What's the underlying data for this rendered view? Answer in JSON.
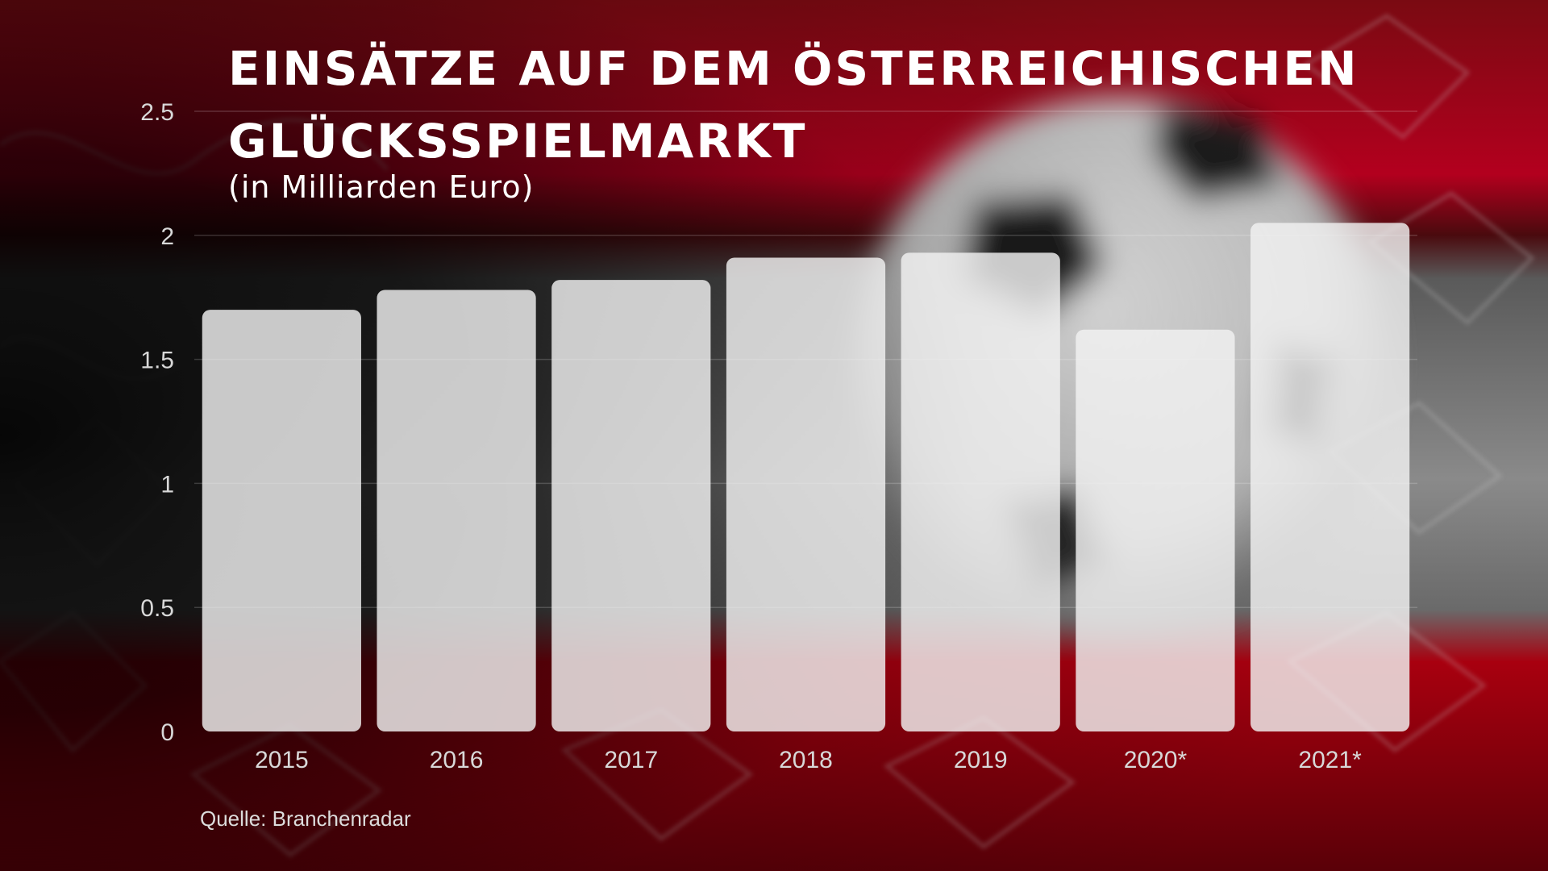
{
  "title": "Einsätze auf dem österreichischen Glücksspielmarkt",
  "subtitle": "(in Milliarden Euro)",
  "source": "Quelle: Branchenradar",
  "colors": {
    "bar": "#f2f2f2",
    "flag_red": "#b3001e",
    "grid": "#ffffff",
    "tick_label": "#d8d8d8"
  },
  "chart_data": {
    "type": "bar",
    "title": "Einsätze auf dem österreichischen Glücksspielmarkt",
    "subtitle": "(in Milliarden Euro)",
    "categories": [
      "2015",
      "2016",
      "2017",
      "2018",
      "2019",
      "2020*",
      "2021*"
    ],
    "values": [
      1.7,
      1.78,
      1.82,
      1.91,
      1.93,
      1.62,
      2.05
    ],
    "yticks": [
      "0",
      "0.5",
      "1",
      "1.5",
      "2",
      "2.5"
    ],
    "ylim": [
      0,
      2.5
    ],
    "grid": true,
    "legend": "none"
  }
}
